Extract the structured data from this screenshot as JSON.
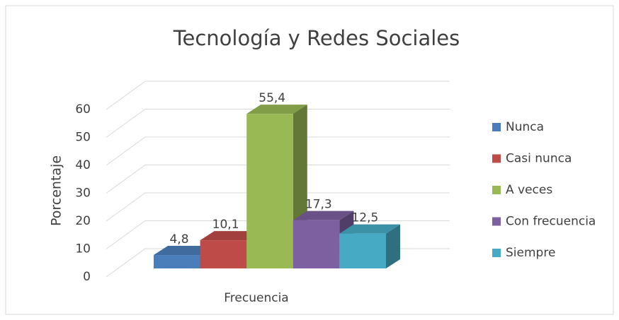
{
  "chart_data": {
    "type": "bar3d",
    "title": "Tecnología y Redes Sociales",
    "y_label": "Porcentaje",
    "categories": [
      "Frecuencia"
    ],
    "series": [
      {
        "name": "Nunca",
        "color": "#4a7ebb",
        "values": [
          4.8
        ],
        "value_labels": [
          "4,8"
        ]
      },
      {
        "name": "Casi nunca",
        "color": "#be4b48",
        "values": [
          10.1
        ],
        "value_labels": [
          "10,1"
        ]
      },
      {
        "name": "A veces",
        "color": "#98b954",
        "values": [
          55.4
        ],
        "value_labels": [
          "55,4"
        ]
      },
      {
        "name": "Con frecuencia",
        "color": "#7d60a0",
        "values": [
          17.3
        ],
        "value_labels": [
          "17,3"
        ]
      },
      {
        "name": "Siempre",
        "color": "#46aac5",
        "values": [
          12.5
        ],
        "value_labels": [
          "12,5"
        ]
      }
    ],
    "ylim": [
      0,
      60
    ],
    "yticks": [
      0,
      10,
      20,
      30,
      40,
      50,
      60
    ],
    "grid": true,
    "legend": "right"
  }
}
